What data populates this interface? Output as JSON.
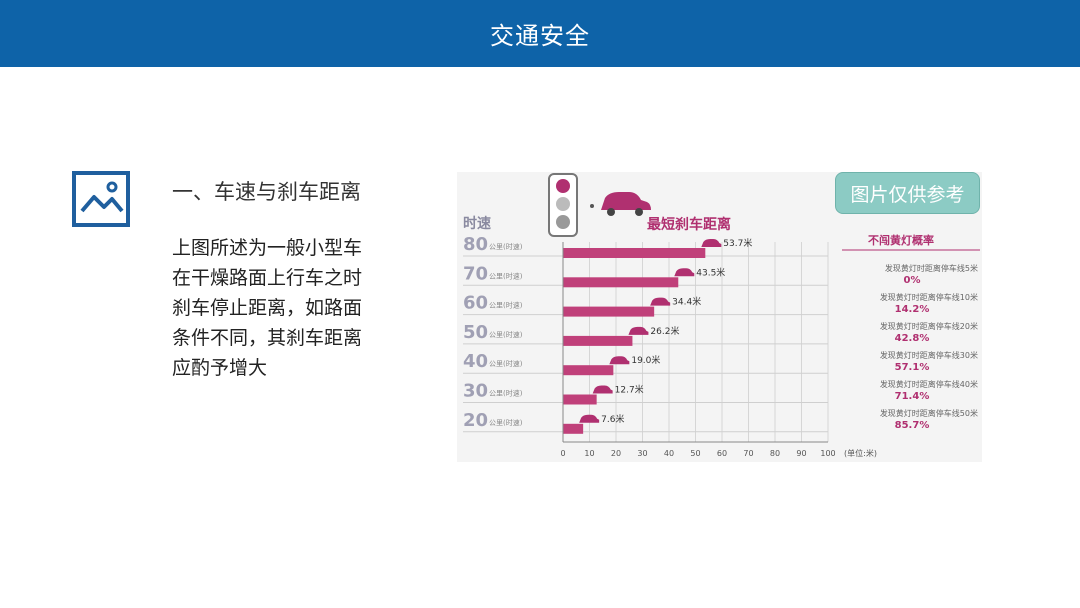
{
  "header": {
    "title": "交通安全"
  },
  "section": {
    "title": "一、车速与刹车距离",
    "body_lines": [
      "上图所述为一般小型车",
      "在干燥路面上行车之时",
      "刹车停止距离，如路面",
      "条件不同，其刹车距离",
      "应酌予增大"
    ]
  },
  "badge": {
    "label": "图片仅供参考"
  },
  "colors": {
    "header": "#0e63a8",
    "bar": "#c0407a",
    "accent": "#b03070",
    "badge": "#8ccbc4"
  },
  "chart_data": {
    "type": "bar",
    "orientation": "horizontal",
    "title": "最短刹车距离",
    "ylabel": "时速",
    "xunit": "(单位:米)",
    "speed_unit": "公里(时速)",
    "categories": [
      "80",
      "70",
      "60",
      "50",
      "40",
      "30",
      "20"
    ],
    "values": [
      53.7,
      43.5,
      34.4,
      26.2,
      19.0,
      12.7,
      7.6
    ],
    "value_labels": [
      "53.7米",
      "43.5米",
      "34.4米",
      "26.2米",
      "19.0米",
      "12.7米",
      "7.6米"
    ],
    "xticks": [
      "0",
      "10",
      "20",
      "30",
      "40",
      "50",
      "60",
      "70",
      "80",
      "90",
      "100"
    ],
    "xlim": [
      0,
      100
    ],
    "side_panel": {
      "title": "不闯黄灯概率",
      "items": [
        {
          "label": "发现黄灯时距离停车线5米",
          "value": "0%"
        },
        {
          "label": "发现黄灯时距离停车线10米",
          "value": "14.2%"
        },
        {
          "label": "发现黄灯时距离停车线20米",
          "value": "42.8%"
        },
        {
          "label": "发现黄灯时距离停车线30米",
          "value": "57.1%"
        },
        {
          "label": "发现黄灯时距离停车线40米",
          "value": "71.4%"
        },
        {
          "label": "发现黄灯时距离停车线50米",
          "value": "85.7%"
        }
      ]
    }
  }
}
